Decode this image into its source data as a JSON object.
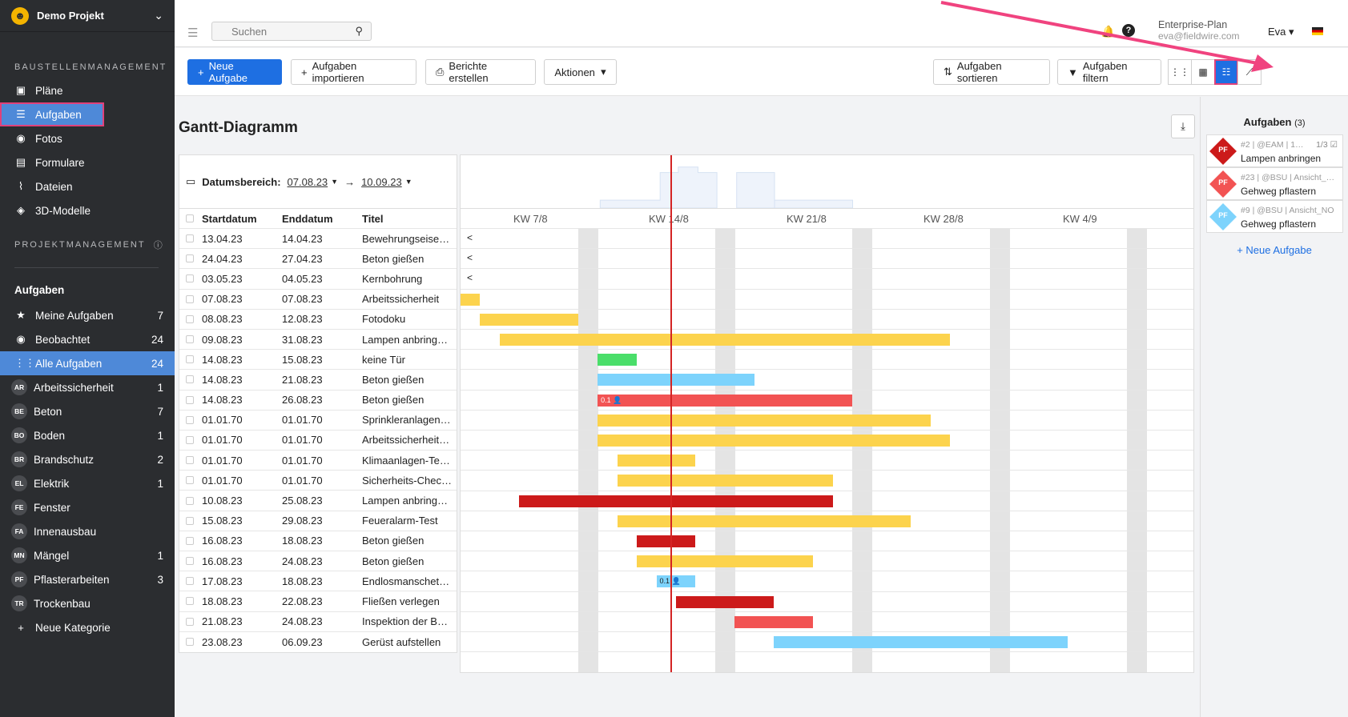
{
  "sidebar": {
    "project_name": "Demo Projekt",
    "section1": "BAUSTELLENMANAGEMENT",
    "nav": [
      {
        "label": "Pläne",
        "icon": "plans-icon"
      },
      {
        "label": "Aufgaben",
        "icon": "list-icon"
      },
      {
        "label": "Fotos",
        "icon": "camera-icon"
      },
      {
        "label": "Formulare",
        "icon": "clipboard-icon"
      },
      {
        "label": "Dateien",
        "icon": "paperclip-icon"
      },
      {
        "label": "3D-Modelle",
        "icon": "cube-icon"
      }
    ],
    "section2": "PROJEKTMANAGEMENT",
    "group_title": "Aufgaben",
    "filters": [
      {
        "label": "Meine Aufgaben",
        "count": "7"
      },
      {
        "label": "Beobachtet",
        "count": "24"
      },
      {
        "label": "Alle Aufgaben",
        "count": "24"
      }
    ],
    "categories": [
      {
        "abbr": "AR",
        "label": "Arbeitssicherheit",
        "count": "1"
      },
      {
        "abbr": "BE",
        "label": "Beton",
        "count": "7"
      },
      {
        "abbr": "BO",
        "label": "Boden",
        "count": "1"
      },
      {
        "abbr": "BR",
        "label": "Brandschutz",
        "count": "2"
      },
      {
        "abbr": "EL",
        "label": "Elektrik",
        "count": "1"
      },
      {
        "abbr": "FE",
        "label": "Fenster",
        "count": ""
      },
      {
        "abbr": "FA",
        "label": "Innenausbau",
        "count": ""
      },
      {
        "abbr": "MN",
        "label": "Mängel",
        "count": "1"
      },
      {
        "abbr": "PF",
        "label": "Pflasterarbeiten",
        "count": "3"
      },
      {
        "abbr": "TR",
        "label": "Trockenbau",
        "count": ""
      }
    ],
    "new_category": "Neue Kategorie"
  },
  "topbar": {
    "search_placeholder": "Suchen",
    "plan": "Enterprise-Plan",
    "email": "eva@fieldwire.com",
    "user": "Eva"
  },
  "toolbar": {
    "new_task": "Neue Aufgabe",
    "import": "Aufgaben importieren",
    "reports": "Berichte erstellen",
    "actions": "Aktionen",
    "sort": "Aufgaben sortieren",
    "filter": "Aufgaben filtern"
  },
  "gantt": {
    "title": "Gantt-Diagramm",
    "date_range_label": "Datumsbereich:",
    "date_from": "07.08.23",
    "date_to": "10.09.23",
    "arrow": "→",
    "columns": [
      "Startdatum",
      "Enddatum",
      "Titel"
    ],
    "weeks": [
      "KW 7/8",
      "KW 14/8",
      "KW 21/8",
      "KW 28/8",
      "KW 4/9"
    ],
    "rows": [
      {
        "start": "13.04.23",
        "end": "14.04.23",
        "title": "Bewehrungseisen…",
        "bar": null
      },
      {
        "start": "24.04.23",
        "end": "27.04.23",
        "title": "Beton gießen",
        "bar": null
      },
      {
        "start": "03.05.23",
        "end": "04.05.23",
        "title": "Kernbohrung",
        "bar": null
      },
      {
        "start": "07.08.23",
        "end": "07.08.23",
        "title": "Arbeitssicherheit",
        "bar": {
          "from": 0,
          "to": 1,
          "color": "#fcd34d"
        }
      },
      {
        "start": "08.08.23",
        "end": "12.08.23",
        "title": "Fotodoku",
        "bar": {
          "from": 1,
          "to": 6,
          "color": "#fcd34d"
        }
      },
      {
        "start": "09.08.23",
        "end": "31.08.23",
        "title": "Lampen anbringe…",
        "bar": {
          "from": 2,
          "to": 25,
          "color": "#fcd34d"
        }
      },
      {
        "start": "14.08.23",
        "end": "15.08.23",
        "title": "keine Tür",
        "bar": {
          "from": 7,
          "to": 9,
          "color": "#4ade6a"
        }
      },
      {
        "start": "14.08.23",
        "end": "21.08.23",
        "title": "Beton gießen",
        "bar": {
          "from": 7,
          "to": 15,
          "color": "#7dd3fc"
        }
      },
      {
        "start": "14.08.23",
        "end": "26.08.23",
        "title": "Beton gießen",
        "bar": {
          "from": 7,
          "to": 20,
          "color": "#f25353",
          "label": "0.1 👤"
        }
      },
      {
        "start": "01.01.70",
        "end": "01.01.70",
        "title": "Sprinkleranlagen-…",
        "bar": {
          "from": 7,
          "to": 24,
          "color": "#fcd34d"
        }
      },
      {
        "start": "01.01.70",
        "end": "01.01.70",
        "title": "Arbeitssicherheit …",
        "bar": {
          "from": 7,
          "to": 25,
          "color": "#fcd34d"
        }
      },
      {
        "start": "01.01.70",
        "end": "01.01.70",
        "title": "Klimaanlagen-Tes…",
        "bar": {
          "from": 8,
          "to": 12,
          "color": "#fcd34d"
        }
      },
      {
        "start": "01.01.70",
        "end": "01.01.70",
        "title": "Sicherheits-Chec…",
        "bar": {
          "from": 8,
          "to": 19,
          "color": "#fcd34d"
        }
      },
      {
        "start": "10.08.23",
        "end": "25.08.23",
        "title": "Lampen anbringe…",
        "bar": {
          "from": 3,
          "to": 19,
          "color": "#cc1a1a"
        }
      },
      {
        "start": "15.08.23",
        "end": "29.08.23",
        "title": "Feueralarm-Test",
        "bar": {
          "from": 8,
          "to": 23,
          "color": "#fcd34d"
        }
      },
      {
        "start": "16.08.23",
        "end": "18.08.23",
        "title": "Beton gießen",
        "bar": {
          "from": 9,
          "to": 12,
          "color": "#cc1a1a"
        }
      },
      {
        "start": "16.08.23",
        "end": "24.08.23",
        "title": "Beton gießen",
        "bar": {
          "from": 9,
          "to": 18,
          "color": "#fcd34d"
        }
      },
      {
        "start": "17.08.23",
        "end": "18.08.23",
        "title": "Endlosmanschett…",
        "bar": {
          "from": 10,
          "to": 12,
          "color": "#7dd3fc",
          "label": "0.1 👤",
          "dark": true
        }
      },
      {
        "start": "18.08.23",
        "end": "22.08.23",
        "title": "Fließen verlegen",
        "bar": {
          "from": 11,
          "to": 16,
          "color": "#cc1a1a"
        }
      },
      {
        "start": "21.08.23",
        "end": "24.08.23",
        "title": "Inspektion der Be…",
        "bar": {
          "from": 14,
          "to": 18,
          "color": "#f25353"
        }
      },
      {
        "start": "23.08.23",
        "end": "06.09.23",
        "title": "Gerüst aufstellen",
        "bar": {
          "from": 16,
          "to": 31,
          "color": "#7dd3fc"
        }
      }
    ]
  },
  "rpanel": {
    "title": "Aufgaben",
    "count": "(3)",
    "cards": [
      {
        "abbr": "PF",
        "color": "#cc1a1a",
        "meta": "#2 | @EAM | 1…",
        "progress": "1/3 ☑",
        "title": "Lampen anbringen"
      },
      {
        "abbr": "PF",
        "color": "#f25353",
        "meta": "#23 | @BSU | Ansicht_…",
        "progress": "",
        "title": "Gehweg pflastern"
      },
      {
        "abbr": "PF",
        "color": "#7dd3fc",
        "meta": "#9 | @BSU | Ansicht_NO",
        "progress": "",
        "title": "Gehweg pflastern"
      }
    ],
    "new_task": "+ Neue Aufgabe"
  }
}
